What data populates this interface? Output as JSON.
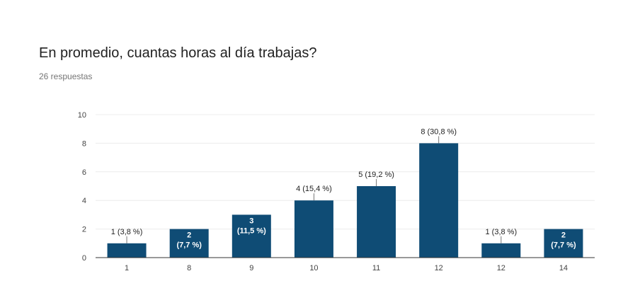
{
  "header": {
    "title": "En promedio, cuantas horas al día trabajas?",
    "subtitle": "26 respuestas"
  },
  "chart_data": {
    "type": "bar",
    "categories": [
      "1",
      "8",
      "9",
      "10",
      "11",
      "12",
      "12",
      "14"
    ],
    "values": [
      1,
      2,
      3,
      4,
      5,
      8,
      1,
      2
    ],
    "percent_labels": [
      "3,8 %",
      "7,7 %",
      "11,5 %",
      "15,4 %",
      "19,2 %",
      "30,8 %",
      "3,8 %",
      "7,7 %"
    ],
    "label_inside": [
      false,
      true,
      true,
      false,
      false,
      false,
      false,
      true
    ],
    "ylim": [
      0,
      10
    ],
    "yticks": [
      0,
      2,
      4,
      6,
      8,
      10
    ],
    "grid": true,
    "legend": "none",
    "bar_color": "#0f4c75"
  }
}
